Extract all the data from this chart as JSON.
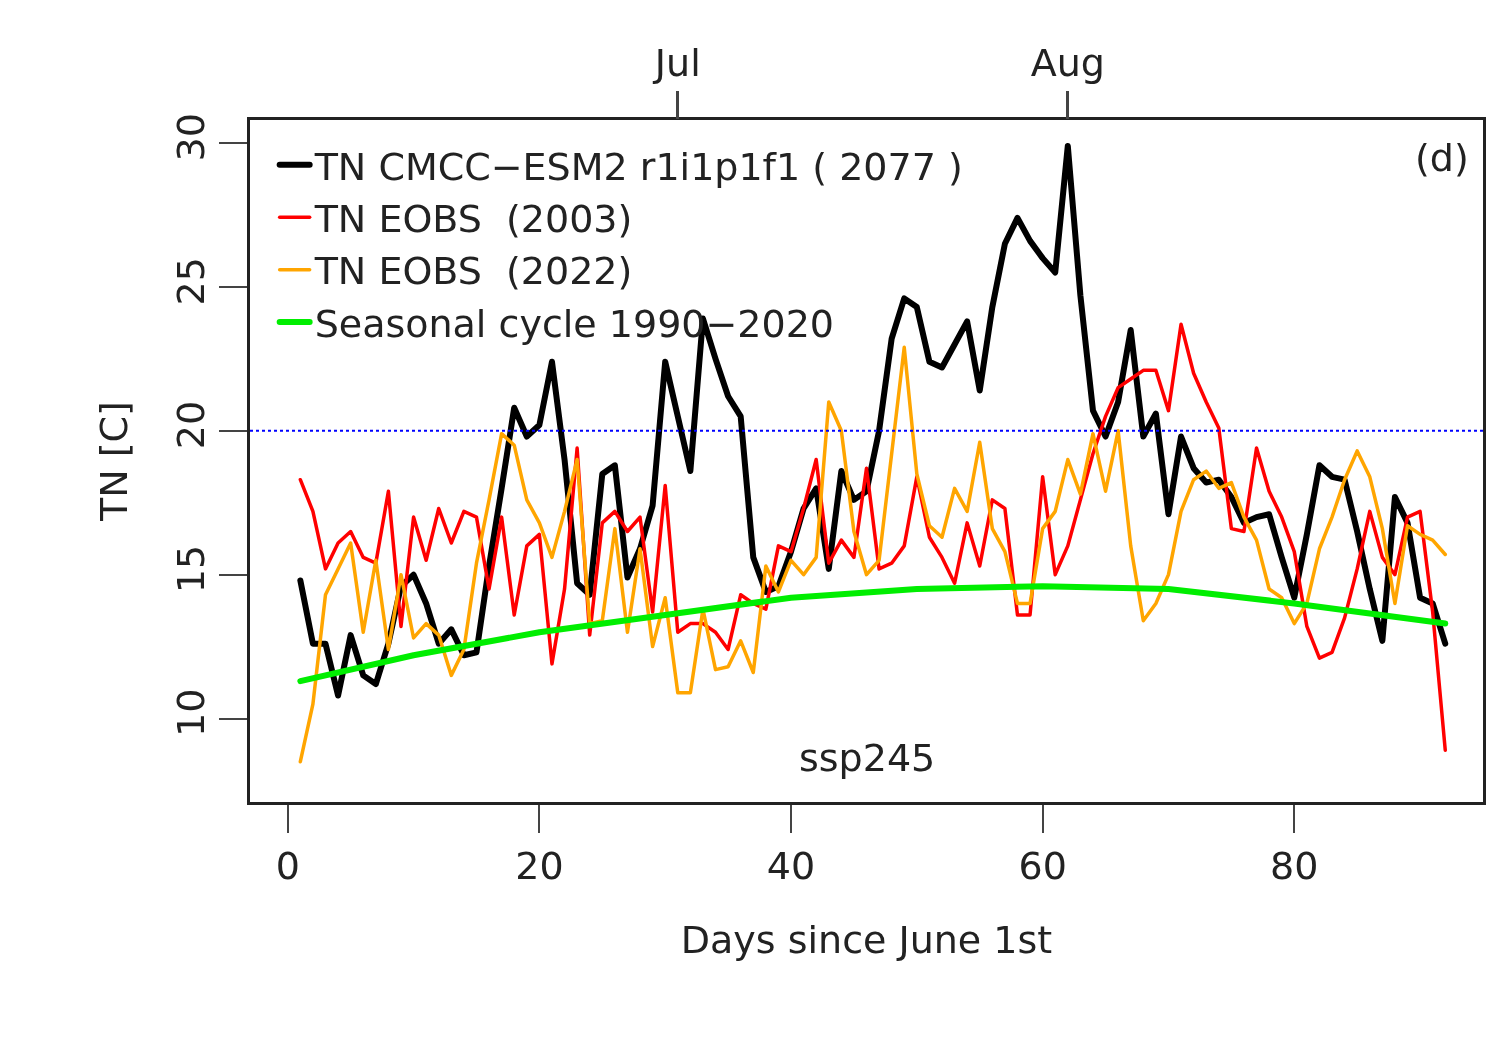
{
  "chart_data": {
    "type": "line",
    "xlabel": "Days since June 1st",
    "ylabel": "TN [C]",
    "x": [
      1,
      2,
      3,
      4,
      5,
      6,
      7,
      8,
      9,
      10,
      11,
      12,
      13,
      14,
      15,
      16,
      17,
      18,
      19,
      20,
      21,
      22,
      23,
      24,
      25,
      26,
      27,
      28,
      29,
      30,
      31,
      32,
      33,
      34,
      35,
      36,
      37,
      38,
      39,
      40,
      41,
      42,
      43,
      44,
      45,
      46,
      47,
      48,
      49,
      50,
      51,
      52,
      53,
      54,
      55,
      56,
      57,
      58,
      59,
      60,
      61,
      62,
      63,
      64,
      65,
      66,
      67,
      68,
      69,
      70,
      71,
      72,
      73,
      74,
      75,
      76,
      77,
      78,
      79,
      80,
      81,
      82,
      83,
      84,
      85,
      86,
      87,
      88,
      89,
      90,
      91,
      92
    ],
    "series": [
      {
        "name": "TN CMCC−ESM2 r1i1p1f1 ( 2077 )",
        "color": "#000000",
        "values": [
          14.8,
          12.6,
          12.6,
          10.8,
          12.9,
          11.5,
          11.2,
          12.6,
          14.6,
          15.0,
          14.0,
          12.6,
          13.1,
          12.2,
          12.3,
          15.3,
          18.0,
          20.8,
          19.8,
          20.2,
          22.4,
          19.0,
          14.7,
          14.3,
          18.5,
          18.8,
          14.9,
          15.9,
          17.4,
          22.4,
          20.5,
          18.6,
          23.9,
          22.5,
          21.2,
          20.5,
          15.6,
          14.4,
          14.6,
          15.8,
          17.3,
          18.0,
          15.2,
          18.6,
          17.6,
          17.9,
          20.0,
          23.2,
          24.6,
          24.3,
          22.4,
          22.2,
          23.0,
          23.8,
          21.4,
          24.3,
          26.5,
          27.4,
          26.6,
          26.0,
          25.5,
          29.9,
          24.7,
          20.7,
          19.8,
          21.0,
          23.5,
          19.8,
          20.6,
          17.1,
          19.8,
          18.7,
          18.2,
          18.3,
          17.7,
          16.8,
          17.0,
          17.1,
          15.6,
          14.2,
          16.4,
          18.8,
          18.4,
          18.3,
          16.5,
          14.5,
          12.7,
          17.7,
          16.8,
          14.2,
          14.0,
          12.6
        ]
      },
      {
        "name": "TN EOBS  (2003)",
        "color": "#ff0000",
        "values": [
          18.3,
          17.2,
          15.2,
          16.1,
          16.5,
          15.6,
          15.4,
          17.9,
          13.2,
          17.0,
          15.5,
          17.3,
          16.1,
          17.2,
          17.0,
          14.5,
          17.0,
          13.6,
          16.0,
          16.4,
          11.9,
          14.5,
          19.4,
          12.9,
          16.8,
          17.2,
          16.5,
          17.0,
          13.7,
          18.1,
          13.0,
          13.3,
          13.3,
          13.0,
          12.4,
          14.3,
          14.0,
          13.8,
          16.0,
          15.8,
          17.3,
          19.0,
          15.4,
          16.2,
          15.6,
          18.7,
          15.2,
          15.4,
          16.0,
          18.4,
          16.3,
          15.6,
          14.7,
          16.8,
          15.3,
          17.6,
          17.3,
          13.6,
          13.6,
          18.4,
          15.0,
          16.0,
          17.6,
          19.2,
          20.5,
          21.5,
          21.8,
          22.1,
          22.1,
          20.7,
          23.7,
          22.0,
          21.0,
          20.1,
          16.6,
          16.5,
          19.4,
          17.9,
          17.0,
          15.8,
          13.2,
          12.1,
          12.3,
          13.5,
          15.2,
          17.2,
          15.6,
          15.0,
          17.0,
          17.2,
          13.7,
          8.9
        ]
      },
      {
        "name": "TN EOBS  (2022)",
        "color": "#ffa500",
        "values": [
          8.5,
          10.5,
          14.3,
          15.2,
          16.1,
          13.0,
          15.5,
          12.4,
          15.0,
          12.8,
          13.3,
          12.9,
          11.5,
          12.4,
          15.4,
          17.6,
          19.9,
          19.5,
          17.6,
          16.8,
          15.6,
          17.2,
          19.0,
          13.3,
          13.4,
          16.6,
          13.0,
          15.9,
          12.5,
          14.2,
          10.9,
          10.9,
          13.8,
          11.7,
          11.8,
          12.7,
          11.6,
          15.3,
          14.4,
          15.5,
          15.0,
          15.6,
          21.0,
          20.0,
          16.5,
          15.0,
          15.5,
          19.2,
          22.9,
          18.5,
          16.7,
          16.3,
          18.0,
          17.2,
          19.6,
          16.6,
          15.8,
          14.0,
          14.0,
          16.6,
          17.2,
          19.0,
          17.8,
          19.9,
          17.9,
          20.0,
          16.0,
          13.4,
          14.0,
          15.0,
          17.2,
          18.3,
          18.6,
          18.0,
          18.2,
          17.0,
          16.2,
          14.5,
          14.2,
          13.3,
          14.0,
          15.9,
          17.0,
          18.3,
          19.3,
          18.4,
          16.6,
          14.0,
          16.7,
          16.4,
          16.2,
          15.7
        ]
      },
      {
        "name": "Seasonal cycle 1990−2020",
        "color": "#00ee00",
        "x": [
          1,
          10,
          20,
          30,
          40,
          50,
          60,
          70,
          80,
          92
        ],
        "values": [
          11.3,
          12.2,
          13.0,
          13.6,
          14.2,
          14.5,
          14.6,
          14.5,
          14.0,
          13.3
        ]
      }
    ],
    "xlim": [
      -3,
      95
    ],
    "xticks": [
      0,
      20,
      40,
      60,
      80
    ],
    "x2lim": [
      "--05-28",
      "--09-03"
    ],
    "x2ticks": [
      {
        "value": "--07-01",
        "label": "Jul"
      },
      {
        "value": "--08-01",
        "label": "Aug"
      }
    ],
    "ylim": [
      7.1,
      30.8
    ],
    "yticks": [
      10,
      15,
      20,
      25,
      30
    ],
    "ref_lines": [
      {
        "axis": "y",
        "value": 20,
        "color": "#0000ff",
        "line_style": "dotted"
      }
    ],
    "annotations": [
      "(d)",
      "ssp245"
    ],
    "legend": "top left",
    "line_style": "solid",
    "marker": "none"
  }
}
